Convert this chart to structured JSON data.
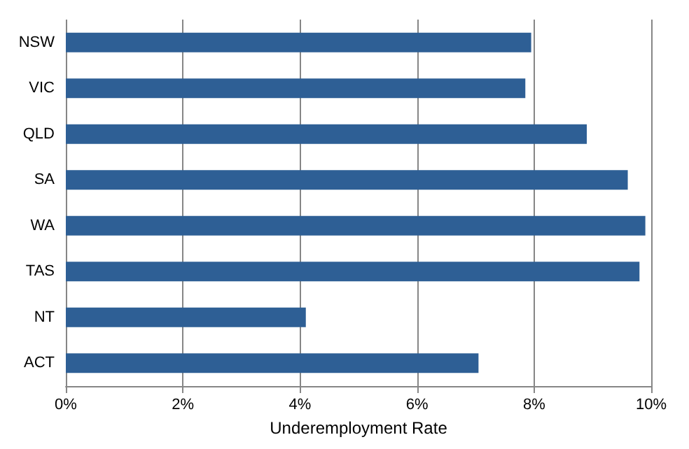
{
  "chart_data": {
    "type": "bar",
    "orientation": "horizontal",
    "xlabel": "Underemployment Rate",
    "categories": [
      "NSW",
      "VIC",
      "QLD",
      "SA",
      "WA",
      "TAS",
      "NT",
      "ACT"
    ],
    "values": [
      7.95,
      7.85,
      8.9,
      9.6,
      9.9,
      9.8,
      4.1,
      7.05
    ],
    "color": "#2e5f95",
    "xlim": [
      0,
      10
    ],
    "xticks": [
      {
        "value": 0,
        "label": "0%"
      },
      {
        "value": 2,
        "label": "2%"
      },
      {
        "value": 4,
        "label": "4%"
      },
      {
        "value": 6,
        "label": "6%"
      },
      {
        "value": 8,
        "label": "8%"
      },
      {
        "value": 10,
        "label": "10%"
      }
    ],
    "grid": "x"
  }
}
